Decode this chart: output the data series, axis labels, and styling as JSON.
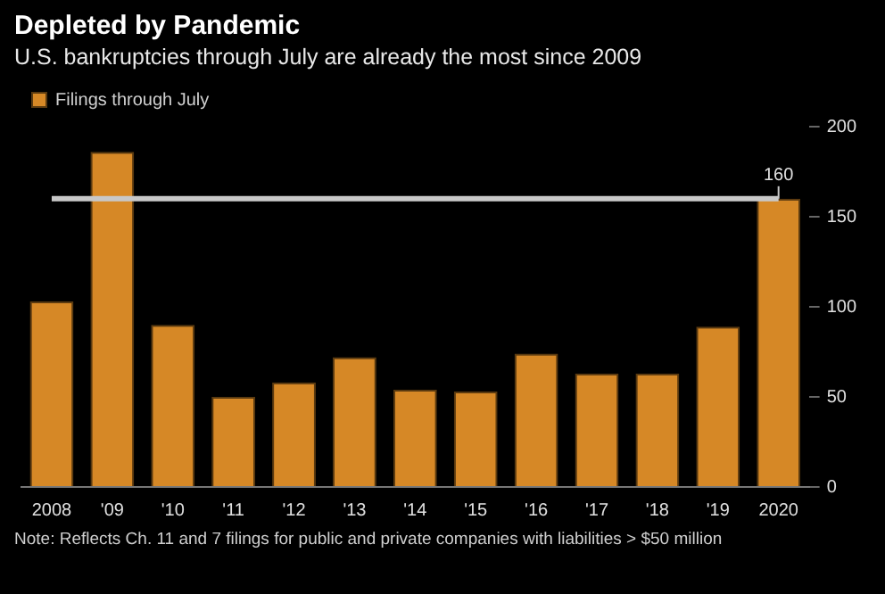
{
  "chart_data": {
    "type": "bar",
    "title": "Depleted by Pandemic",
    "subtitle": "U.S. bankruptcies through July are already the most since 2009",
    "categories": [
      "2008",
      "'09",
      "'10",
      "'11",
      "'12",
      "'13",
      "'14",
      "'15",
      "'16",
      "'17",
      "'18",
      "'19",
      "2020"
    ],
    "series": [
      {
        "name": "Filings through July",
        "color": "#d68826",
        "values": [
          103,
          186,
          90,
          50,
          58,
          72,
          54,
          53,
          74,
          63,
          63,
          89,
          160
        ]
      }
    ],
    "ylim": [
      0,
      200
    ],
    "yticks": [
      0,
      50,
      100,
      150,
      200
    ],
    "grid": false,
    "legend": "top left",
    "ref_lines": [
      {
        "axis": "y",
        "value": 160,
        "label": "160",
        "color": "#c8c8c8"
      }
    ],
    "annotations": [
      "Note: Reflects Ch. 11 and 7 filings for public and private companies with liabilities > $50 million"
    ]
  }
}
